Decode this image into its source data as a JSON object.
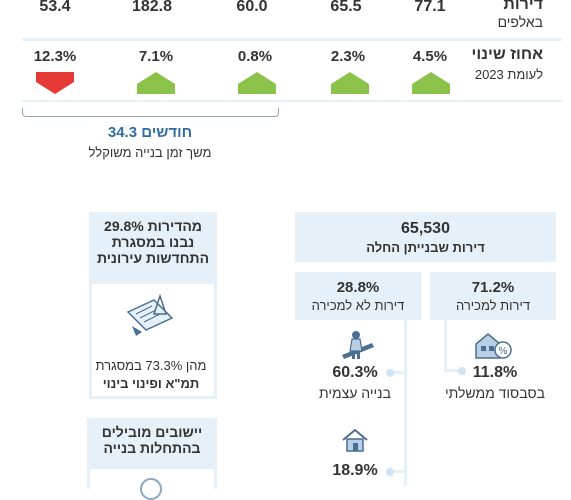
{
  "top_values": [
    "53.4",
    "182.8",
    "60.0",
    "65.5",
    "77.1"
  ],
  "top_header": {
    "title": "דירות",
    "subtitle": "באלפים"
  },
  "change_header": {
    "title": "אחוז שינוי",
    "subtitle": "לעומת 2023"
  },
  "changes": [
    {
      "value": "12.3%",
      "direction": "down"
    },
    {
      "value": "7.1%",
      "direction": "up"
    },
    {
      "value": "0.8%",
      "direction": "up"
    },
    {
      "value": "2.3%",
      "direction": "up"
    },
    {
      "value": "4.5%",
      "direction": "up"
    }
  ],
  "build_time": {
    "value": "34.3 חודשים",
    "label": "משך זמן בנייה משוקלל"
  },
  "starts": {
    "value": "65,530",
    "label": "דירות שבנייתן החלה"
  },
  "for_sale": {
    "value": "71.2%",
    "label": "דירות למכירה"
  },
  "not_for_sale": {
    "value": "28.8%",
    "label": "דירות לא למכירה"
  },
  "subsidy": {
    "value": "11.8%",
    "label": "בסבסוד ממשלתי",
    "icon": "houses-percent-icon"
  },
  "self_build": {
    "value": "60.3%",
    "label": "בנייה עצמית",
    "icon": "builder-icon"
  },
  "other_part": {
    "value": "18.9%",
    "icon": "house-icon"
  },
  "renewal": {
    "line1": "29.8% מהדירות",
    "line2": "נבנו במסגרת",
    "line3": "התחדשות עירונית",
    "sub1": "מהן 73.3% במסגרת",
    "sub2": "תמ\"א ופינוי בינוי",
    "icon": "blueprint-icon"
  },
  "leading": {
    "line1": "יישובים מובילים",
    "line2": "בהתחלות בנייה"
  },
  "colors": {
    "up": "#8bc34a",
    "down": "#e53935",
    "panel": "#e6f0f8",
    "accent": "#2e6da4"
  }
}
